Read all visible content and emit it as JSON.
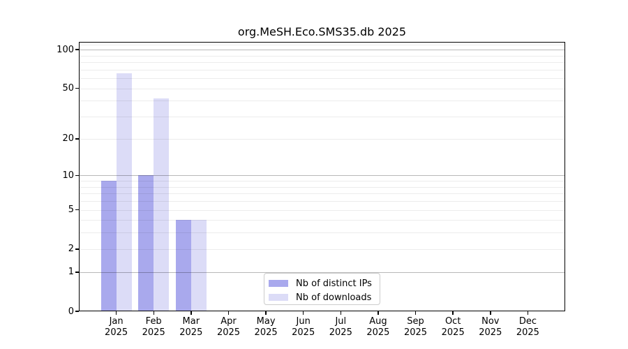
{
  "title": "org.MeSH.Eco.SMS35.db 2025",
  "chart_data": {
    "type": "bar",
    "title": "org.MeSH.Eco.SMS35.db 2025",
    "year_label": "2025",
    "categories": [
      "Jan",
      "Feb",
      "Mar",
      "Apr",
      "May",
      "Jun",
      "Jul",
      "Aug",
      "Sep",
      "Oct",
      "Nov",
      "Dec"
    ],
    "series": [
      {
        "name": "Nb of distinct IPs",
        "color": "#a9a9ed",
        "values": [
          9,
          10,
          4,
          0,
          0,
          0,
          0,
          0,
          0,
          0,
          0,
          0
        ]
      },
      {
        "name": "Nb of downloads",
        "color": "#dcdcf7",
        "values": [
          66,
          42,
          4,
          0,
          0,
          0,
          0,
          0,
          0,
          0,
          0,
          0
        ]
      }
    ],
    "y_axis": {
      "ticks": [
        100,
        50,
        20,
        10,
        5,
        2,
        1,
        0
      ],
      "scale": "log10(1+value)",
      "max": 115
    },
    "grid": {
      "major_levels": [
        1,
        10,
        100
      ],
      "minor_levels": [
        2,
        3,
        4,
        5,
        6,
        7,
        8,
        9,
        20,
        30,
        40,
        50,
        60,
        70,
        80,
        90,
        110
      ],
      "orientation": "horizontal"
    },
    "legend": {
      "position": "inside-bottom-center",
      "entries": [
        "Nb of distinct IPs",
        "Nb of downloads"
      ]
    }
  }
}
